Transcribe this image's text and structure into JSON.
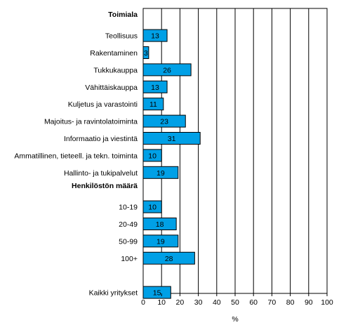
{
  "chart_data": {
    "type": "bar",
    "orientation": "horizontal",
    "xlabel": "%",
    "xlim": [
      0,
      100
    ],
    "xticks": [
      0,
      10,
      20,
      30,
      40,
      50,
      60,
      70,
      80,
      90,
      100
    ],
    "grid": true,
    "bar_color": "#00a0e6",
    "sections": [
      {
        "heading": "Toimiala",
        "categories": [
          "Teollisuus",
          "Rakentaminen",
          "Tukkukauppa",
          "Vähittäiskauppa",
          "Kuljetus ja varastointi",
          "Majoitus- ja ravintolatoiminta",
          "Informaatio ja viestintä",
          "Ammatillinen, tieteell. ja tekn. toiminta",
          "Hallinto- ja tukipalvelut"
        ],
        "values": [
          13,
          3,
          26,
          13,
          11,
          23,
          31,
          10,
          19
        ]
      },
      {
        "heading": "Henkilöstön määrä",
        "categories": [
          "10-19",
          "20-49",
          "50-99",
          "100+"
        ],
        "values": [
          10,
          18,
          19,
          28
        ]
      },
      {
        "heading": "",
        "categories": [
          "Kaikki yritykset"
        ],
        "values": [
          15
        ]
      }
    ]
  }
}
